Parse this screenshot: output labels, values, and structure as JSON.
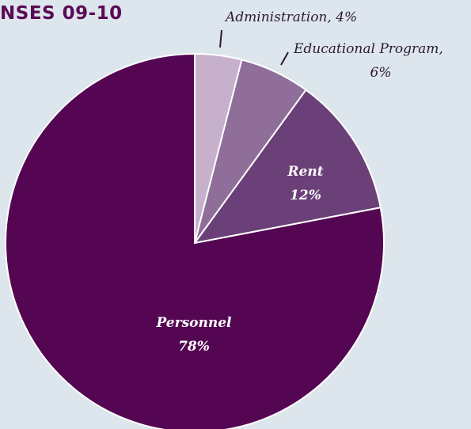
{
  "colors": {
    "title": "#5a0a56",
    "background": "#dde6ec",
    "administration": "#c6b0cc",
    "educational_program": "#8f6e9a",
    "rent": "#6b3f77",
    "personnel": "#540653"
  },
  "chart_data": {
    "type": "pie",
    "title": "NSES 09-10",
    "slices": [
      {
        "label": "Administration",
        "value": 4,
        "label_text": "Administration, 4%",
        "color": "#c6b0cc",
        "label_position": "outside"
      },
      {
        "label": "Educational Program",
        "value": 6,
        "label_line1": "Educational Program,",
        "label_line2": "6%",
        "color": "#8f6e9a",
        "label_position": "outside"
      },
      {
        "label": "Rent",
        "value": 12,
        "label_line1": "Rent",
        "label_line2": "12%",
        "color": "#6b3f77",
        "label_position": "inside"
      },
      {
        "label": "Personnel",
        "value": 78,
        "label_line1": "Personnel",
        "label_line2": "78%",
        "color": "#540653",
        "label_position": "inside"
      }
    ]
  }
}
